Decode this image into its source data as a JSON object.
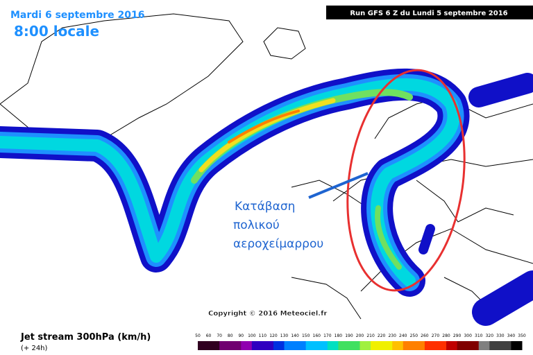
{
  "header": {
    "date": "Mardi 6 septembre 2016",
    "time": "8:00 locale",
    "run": "Run GFS 6 Z du Lundi 5 septembre 2016"
  },
  "annotation": {
    "lines": [
      "Κατάβαση",
      "πολικού",
      "αεροχείμαρρου"
    ]
  },
  "copyright": "Copyright © 2016 Meteociel.fr",
  "legend": {
    "title": "Jet stream 300hPa (km/h)",
    "subtitle": "(+ 24h)",
    "ticks": [
      50,
      60,
      70,
      80,
      90,
      100,
      110,
      120,
      130,
      140,
      150,
      160,
      170,
      180,
      190,
      200,
      210,
      220,
      230,
      240,
      250,
      260,
      270,
      280,
      290,
      300,
      310,
      320,
      330,
      340,
      350
    ]
  }
}
